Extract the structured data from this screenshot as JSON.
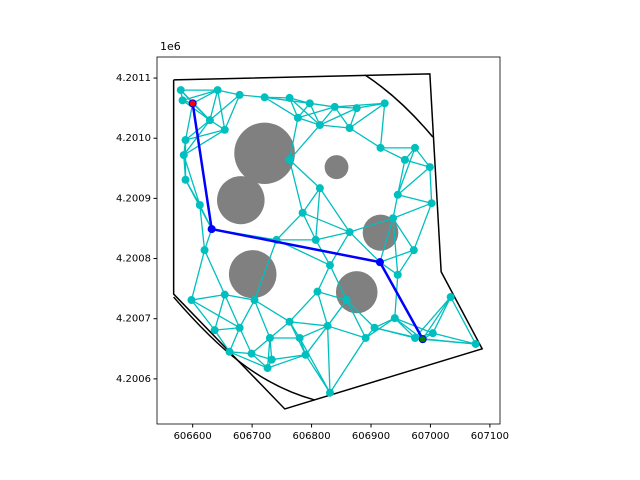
{
  "chart_data": {
    "type": "roadmap",
    "offset_label": "1e6",
    "xlim": [
      606540,
      607117
    ],
    "ylim": [
      4200525,
      4201135
    ],
    "xticks": [
      606600,
      606700,
      606800,
      606900,
      607000,
      607100
    ],
    "yticks": [
      {
        "value": 4200600,
        "label": "4.2006"
      },
      {
        "value": 4200700,
        "label": "4.2007"
      },
      {
        "value": 4200800,
        "label": "4.2008"
      },
      {
        "value": 4200900,
        "label": "4.2009"
      },
      {
        "value": 4201000,
        "label": "4.2010"
      },
      {
        "value": 4201100,
        "label": "4.2011"
      }
    ],
    "boundary": {
      "color": "#000000",
      "x": [
        606568,
        606999,
        607018,
        607087,
        606755,
        606568,
        606568
      ],
      "y": [
        4201097,
        4201107,
        4200778,
        4200650,
        4200550,
        4200741,
        4201097
      ]
    },
    "arcs": [
      {
        "x": [
          606890,
          606949,
          607004
        ],
        "y": [
          4201105,
          4201067,
          4201002
        ]
      },
      {
        "x": [
          606568,
          606645,
          606713,
          606805
        ],
        "y": [
          4200736,
          4200648,
          4200590,
          4200565
        ]
      }
    ],
    "obstacles": {
      "color": "#808080",
      "x": [
        606721,
        606681,
        606701,
        606876,
        606916,
        606842
      ],
      "y": [
        4200975,
        4200897,
        4200774,
        4200744,
        4200843,
        4200952
      ],
      "r": [
        51,
        40,
        40,
        35,
        30,
        20
      ]
    },
    "nodes": {
      "color": "#00bfbf",
      "x": [
        606580,
        606583,
        606642,
        606679,
        606721,
        606763,
        606797,
        606839,
        606876,
        606923,
        606864,
        606814,
        606777,
        606654,
        606629,
        606588,
        606585,
        606588,
        606612,
        606763,
        606814,
        606785,
        606807,
        606864,
        606937,
        606945,
        606916,
        606957,
        606974,
        606999,
        607002,
        606972,
        606945,
        607034,
        606620,
        606741,
        606831,
        606859,
        606810,
        606763,
        606704,
        606654,
        606598,
        606637,
        606679,
        606730,
        606780,
        606827,
        606906,
        606974,
        607004,
        607076,
        606662,
        606699,
        606733,
        606790,
        606726,
        606831,
        606891,
        606940,
        606600,
        606632,
        606915,
        606987
      ],
      "y": [
        4201080,
        4201063,
        4201080,
        4201072,
        4201068,
        4201067,
        4201058,
        4201052,
        4201050,
        4201058,
        4201017,
        4201022,
        4201034,
        4201014,
        4201030,
        4200997,
        4200972,
        4200931,
        4200889,
        4200964,
        4200917,
        4200876,
        4200831,
        4200844,
        4200867,
        4200906,
        4200984,
        4200964,
        4200984,
        4200952,
        4200892,
        4200814,
        4200773,
        4200736,
        4200814,
        4200831,
        4200789,
        4200731,
        4200745,
        4200695,
        4200731,
        4200740,
        4200731,
        4200681,
        4200685,
        4200668,
        4200668,
        4200688,
        4200685,
        4200668,
        4200676,
        4200658,
        4200645,
        4200642,
        4200632,
        4200640,
        4200618,
        4200577,
        4200668,
        4200701,
        4201058,
        4200849,
        4200794,
        4200666
      ]
    },
    "path": {
      "color": "#0000ff",
      "x": [
        606600,
        606632,
        606915,
        606987
      ],
      "y": [
        4201058,
        4200849,
        4200794,
        4200666
      ]
    },
    "start_color": "#ff0000",
    "goal_color": "#008000"
  }
}
